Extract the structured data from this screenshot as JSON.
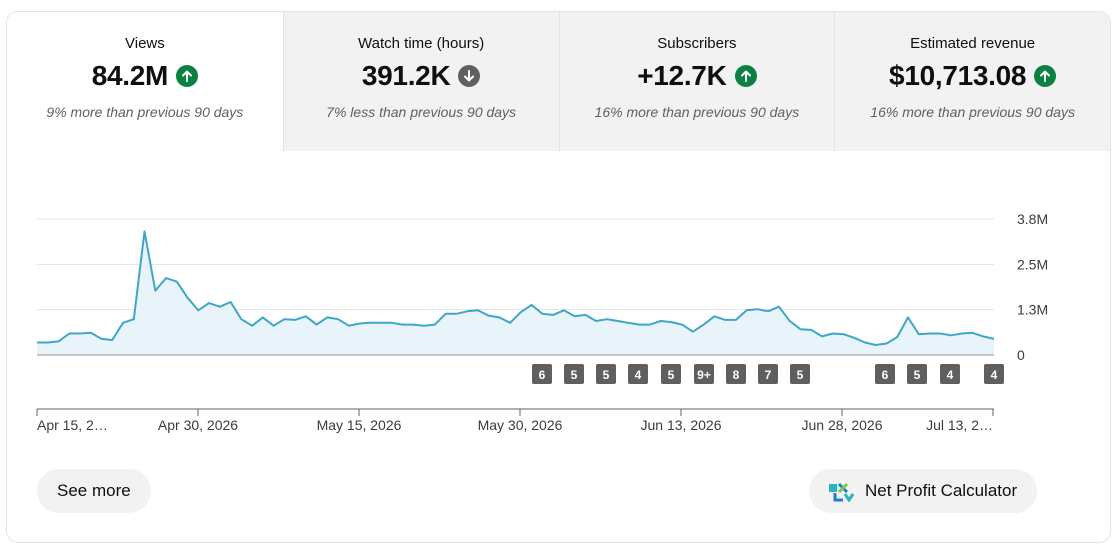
{
  "metrics": [
    {
      "label": "Views",
      "value": "84.2M",
      "direction": "up",
      "comparison": "9% more than previous 90 days",
      "active": true
    },
    {
      "label": "Watch time (hours)",
      "value": "391.2K",
      "direction": "down",
      "comparison": "7% less than previous 90 days",
      "active": false
    },
    {
      "label": "Subscribers",
      "value": "+12.7K",
      "direction": "up",
      "comparison": "16% more than previous 90 days",
      "active": false
    },
    {
      "label": "Estimated revenue",
      "value": "$10,713.08",
      "direction": "up",
      "comparison": "16% more than previous 90 days",
      "active": false
    }
  ],
  "colors": {
    "up": "#0b8043",
    "down": "#606060",
    "line": "#3ea6c8",
    "fill": "#e8f4fa",
    "grid": "#e5e5e5",
    "baseline": "#909090",
    "badge": "#5f5f5f"
  },
  "chart_data": {
    "type": "area",
    "y_ticks": [
      "3.8M",
      "2.5M",
      "1.3M",
      "0"
    ],
    "ylim": [
      0,
      3.8
    ],
    "x_tick_labels": [
      "Apr 15, 2…",
      "Apr 30, 2026",
      "May 15, 2026",
      "May 30, 2026",
      "Jun 13, 2026",
      "Jun 28, 2026",
      "Jul 13, 2…"
    ],
    "series": [
      {
        "values": [
          0.35,
          0.35,
          0.38,
          0.6,
          0.6,
          0.62,
          0.45,
          0.42,
          0.9,
          1.0,
          3.45,
          1.8,
          2.15,
          2.05,
          1.6,
          1.25,
          1.45,
          1.35,
          1.48,
          1.0,
          0.82,
          1.05,
          0.82,
          1.0,
          0.98,
          1.08,
          0.85,
          1.05,
          1.0,
          0.82,
          0.88,
          0.9,
          0.9,
          0.9,
          0.85,
          0.85,
          0.82,
          0.85,
          1.15,
          1.15,
          1.22,
          1.25,
          1.1,
          1.05,
          0.9,
          1.2,
          1.4,
          1.15,
          1.12,
          1.25,
          1.08,
          1.12,
          0.95,
          1.0,
          0.95,
          0.9,
          0.85,
          0.85,
          0.95,
          0.92,
          0.85,
          0.65,
          0.85,
          1.08,
          0.98,
          0.98,
          1.25,
          1.28,
          1.22,
          1.35,
          0.95,
          0.72,
          0.7,
          0.52,
          0.6,
          0.58,
          0.48,
          0.35,
          0.28,
          0.32,
          0.5,
          1.05,
          0.58,
          0.6,
          0.6,
          0.55,
          0.6,
          0.62,
          0.52,
          0.45
        ]
      }
    ],
    "annotations": [
      "6",
      "5",
      "5",
      "4",
      "5",
      "9+",
      "8",
      "7",
      "5",
      "6",
      "5",
      "4",
      "4"
    ]
  },
  "buttons": {
    "see_more": "See more",
    "net_profit": "Net Profit Calculator"
  }
}
